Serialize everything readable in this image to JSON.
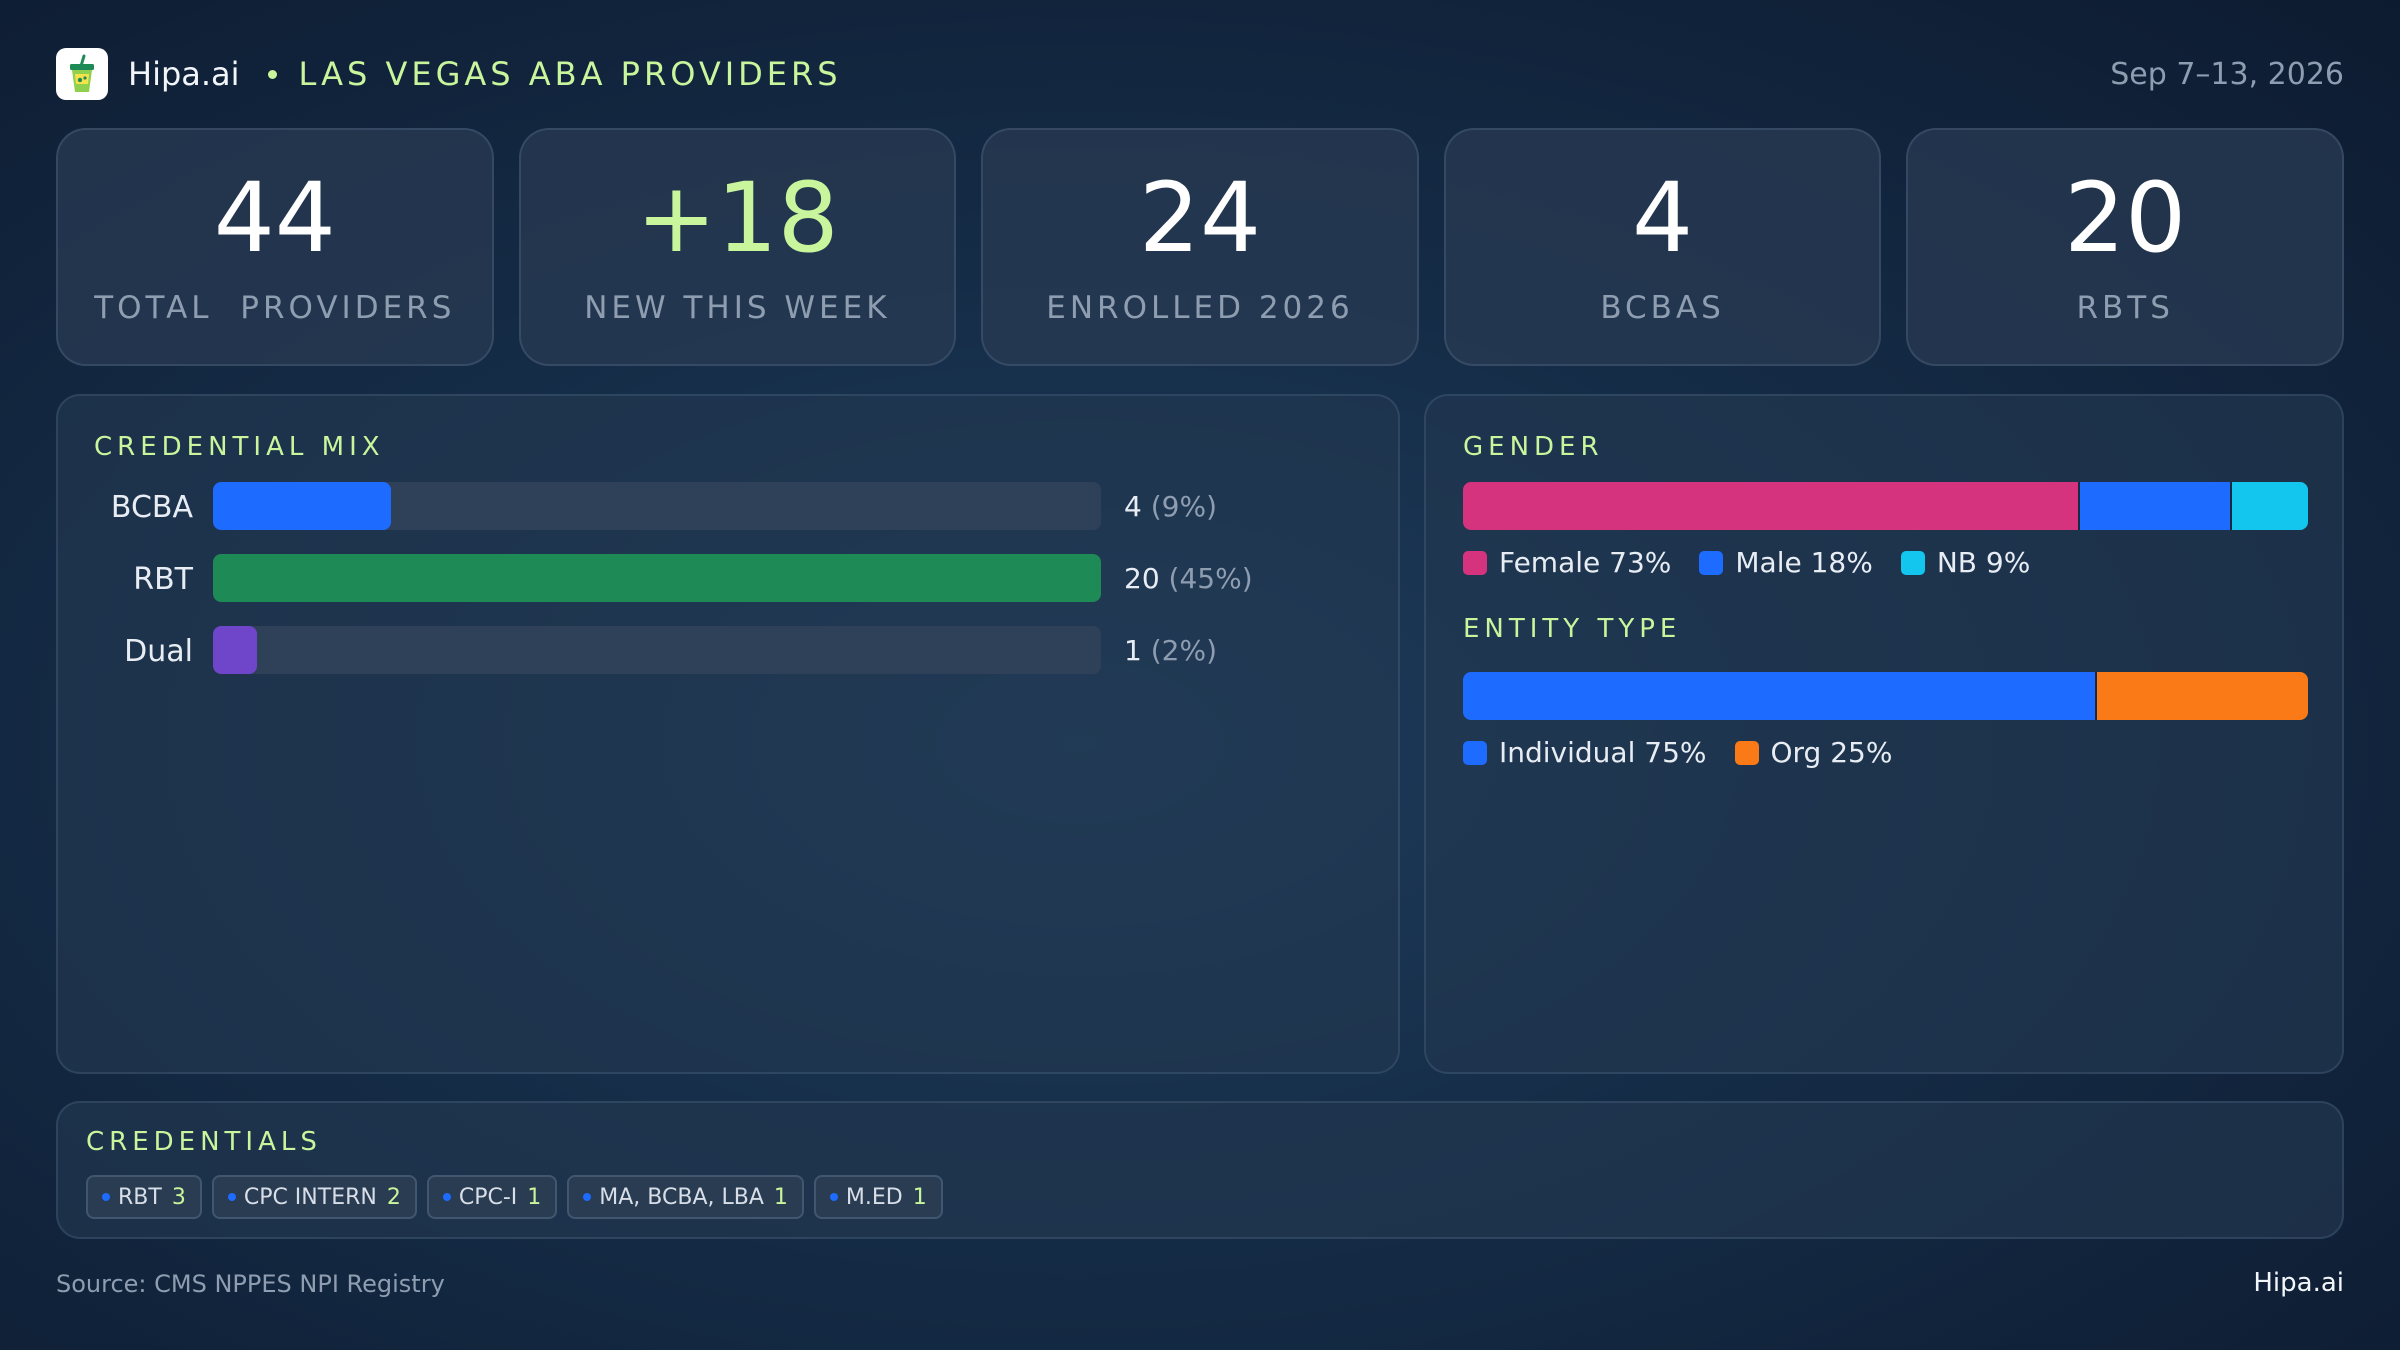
{
  "header": {
    "brand": "Hipa.ai",
    "title": "LAS VEGAS ABA PROVIDERS",
    "date_range": "Sep 7–13, 2026",
    "logo_icon": "drink-cup-icon"
  },
  "kpis": [
    {
      "value": "44",
      "label": "TOTAL  PROVIDERS"
    },
    {
      "value": "+18",
      "label": "NEW THIS WEEK"
    },
    {
      "value": "24",
      "label": "ENROLLED 2026"
    },
    {
      "value": "4",
      "label": "BCBAS"
    },
    {
      "value": "20",
      "label": "RBTS"
    }
  ],
  "credential_mix": {
    "title": "CREDENTIAL MIX",
    "rows": [
      {
        "label": "BCBA",
        "count": "4",
        "pct_text": "(9%)",
        "fraction": 0.2,
        "color": "#1e6bff"
      },
      {
        "label": "RBT",
        "count": "20",
        "pct_text": "(45%)",
        "fraction": 1.0,
        "color": "#1e8a55"
      },
      {
        "label": "Dual",
        "count": "1",
        "pct_text": "(2%)",
        "fraction": 0.05,
        "color": "#6f45c9"
      }
    ]
  },
  "gender": {
    "title": "GENDER",
    "segments": [
      {
        "label": "Female 73%",
        "share": 73,
        "color": "#d6337f"
      },
      {
        "label": "Male 18%",
        "share": 18,
        "color": "#1e6bff"
      },
      {
        "label": "NB 9%",
        "share": 9,
        "color": "#12c6ee"
      }
    ]
  },
  "entity_type": {
    "title": "ENTITY TYPE",
    "segments": [
      {
        "label": "Individual 75%",
        "share": 75,
        "color": "#1e6bff"
      },
      {
        "label": "Org 25%",
        "share": 25,
        "color": "#f97a16"
      }
    ]
  },
  "credentials": {
    "title": "CREDENTIALS",
    "chips": [
      {
        "label": "RBT",
        "count": "3"
      },
      {
        "label": "CPC INTERN",
        "count": "2"
      },
      {
        "label": "CPC-I",
        "count": "1"
      },
      {
        "label": "MA, BCBA, LBA",
        "count": "1"
      },
      {
        "label": "M.ED",
        "count": "1"
      }
    ]
  },
  "footer": {
    "source": "Source: CMS NPPES NPI Registry",
    "brand": "Hipa.ai"
  },
  "colors": {
    "accent": "#c9f59c",
    "muted": "#8e9db0"
  }
}
